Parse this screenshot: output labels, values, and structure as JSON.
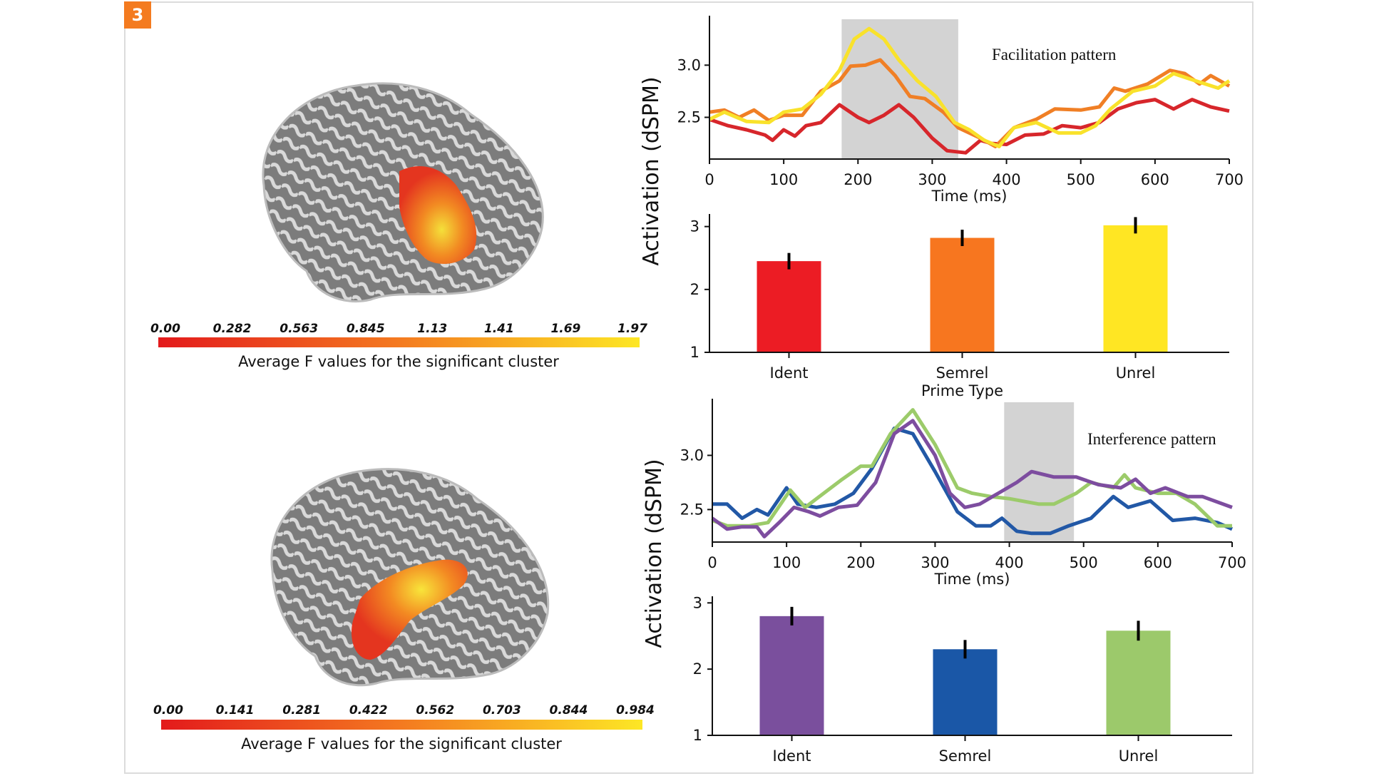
{
  "badge": "3",
  "colorbars": [
    {
      "ticks": [
        "0.00",
        "0.282",
        "0.563",
        "0.845",
        "1.13",
        "1.41",
        "1.69",
        "1.97"
      ],
      "caption": "Average F values for the significant cluster",
      "colors": [
        "#e31a1c",
        "#f47a20",
        "#fde725"
      ]
    },
    {
      "ticks": [
        "0.00",
        "0.141",
        "0.281",
        "0.422",
        "0.562",
        "0.703",
        "0.844",
        "0.984"
      ],
      "caption": "Average F values for the significant cluster",
      "colors": [
        "#e31a1c",
        "#f47a20",
        "#fde725"
      ]
    }
  ],
  "shared_ylabel": "Activation (dSPM)",
  "chart_data": [
    {
      "type": "line",
      "annotation": "Facilitation pattern",
      "xlabel": "Time (ms)",
      "xlim": [
        0,
        700
      ],
      "xticks": [
        "0",
        "100",
        "200",
        "300",
        "400",
        "500",
        "600",
        "700"
      ],
      "ylim": [
        2.1,
        3.44
      ],
      "yticks": [
        "2.5",
        "3.0"
      ],
      "shaded_interval": [
        178,
        335
      ],
      "shade_color": "#d3d3d3",
      "grid": false,
      "series": [
        {
          "color": "#d7262b",
          "x": [
            0,
            25,
            50,
            75,
            85,
            100,
            115,
            130,
            150,
            175,
            200,
            215,
            235,
            255,
            275,
            300,
            320,
            345,
            365,
            380,
            400,
            425,
            450,
            475,
            500,
            525,
            550,
            575,
            600,
            625,
            650,
            675,
            700
          ],
          "y": [
            2.48,
            2.42,
            2.38,
            2.33,
            2.28,
            2.38,
            2.32,
            2.42,
            2.45,
            2.62,
            2.5,
            2.45,
            2.52,
            2.62,
            2.5,
            2.3,
            2.18,
            2.16,
            2.28,
            2.25,
            2.24,
            2.33,
            2.34,
            2.42,
            2.4,
            2.45,
            2.58,
            2.64,
            2.67,
            2.58,
            2.67,
            2.6,
            2.56
          ]
        },
        {
          "color": "#f07f25",
          "x": [
            0,
            20,
            40,
            60,
            80,
            100,
            125,
            150,
            175,
            190,
            210,
            230,
            250,
            270,
            290,
            315,
            335,
            365,
            385,
            410,
            440,
            465,
            500,
            525,
            545,
            560,
            590,
            620,
            640,
            660,
            675,
            700
          ],
          "y": [
            2.55,
            2.57,
            2.5,
            2.57,
            2.47,
            2.52,
            2.52,
            2.75,
            2.85,
            2.99,
            3.0,
            3.05,
            2.9,
            2.7,
            2.68,
            2.55,
            2.4,
            2.3,
            2.22,
            2.4,
            2.48,
            2.58,
            2.57,
            2.6,
            2.78,
            2.75,
            2.82,
            2.95,
            2.92,
            2.82,
            2.9,
            2.8
          ]
        },
        {
          "color": "#f9e22b",
          "x": [
            0,
            20,
            50,
            80,
            100,
            125,
            150,
            175,
            195,
            215,
            235,
            255,
            280,
            305,
            330,
            350,
            370,
            390,
            410,
            440,
            470,
            500,
            520,
            540,
            570,
            600,
            625,
            650,
            685,
            700
          ],
          "y": [
            2.48,
            2.55,
            2.46,
            2.45,
            2.55,
            2.58,
            2.72,
            2.95,
            3.25,
            3.35,
            3.25,
            3.05,
            2.85,
            2.7,
            2.45,
            2.38,
            2.28,
            2.22,
            2.4,
            2.45,
            2.35,
            2.35,
            2.42,
            2.58,
            2.75,
            2.8,
            2.92,
            2.86,
            2.78,
            2.85
          ]
        }
      ]
    },
    {
      "type": "bar",
      "xlabel": "Prime Type",
      "categories": [
        "Ident",
        "Semrel",
        "Unrel"
      ],
      "values": [
        2.45,
        2.82,
        3.02
      ],
      "errors": [
        0.13,
        0.13,
        0.13
      ],
      "colors": [
        "#ec1c24",
        "#f7761f",
        "#ffe623"
      ],
      "ylim": [
        1,
        3.2
      ],
      "yticks": [
        "1",
        "2",
        "3"
      ]
    },
    {
      "type": "line",
      "annotation": "Interference pattern",
      "xlabel": "Time (ms)",
      "xlim": [
        0,
        700
      ],
      "xticks": [
        "0",
        "100",
        "200",
        "300",
        "400",
        "500",
        "600",
        "700"
      ],
      "ylim": [
        2.2,
        3.49
      ],
      "yticks": [
        "2.5",
        "3.0"
      ],
      "shaded_interval": [
        393,
        487
      ],
      "shade_color": "#d3d3d3",
      "grid": false,
      "series": [
        {
          "color": "#2258a6",
          "x": [
            0,
            20,
            40,
            60,
            75,
            100,
            115,
            140,
            165,
            190,
            215,
            245,
            270,
            300,
            330,
            355,
            375,
            390,
            410,
            430,
            455,
            480,
            510,
            540,
            560,
            590,
            620,
            650,
            680,
            700
          ],
          "y": [
            2.55,
            2.55,
            2.42,
            2.5,
            2.45,
            2.7,
            2.55,
            2.52,
            2.55,
            2.65,
            2.88,
            3.25,
            3.2,
            2.85,
            2.48,
            2.35,
            2.35,
            2.42,
            2.3,
            2.28,
            2.28,
            2.35,
            2.42,
            2.62,
            2.52,
            2.58,
            2.4,
            2.42,
            2.38,
            2.32
          ]
        },
        {
          "color": "#9ccb6a",
          "x": [
            0,
            20,
            50,
            75,
            105,
            125,
            150,
            175,
            200,
            215,
            240,
            270,
            300,
            330,
            350,
            375,
            400,
            440,
            460,
            490,
            510,
            540,
            555,
            570,
            600,
            625,
            650,
            680,
            700
          ],
          "y": [
            2.4,
            2.35,
            2.35,
            2.38,
            2.68,
            2.52,
            2.65,
            2.78,
            2.9,
            2.9,
            3.2,
            3.42,
            3.1,
            2.7,
            2.65,
            2.62,
            2.6,
            2.55,
            2.55,
            2.65,
            2.75,
            2.7,
            2.82,
            2.7,
            2.65,
            2.65,
            2.55,
            2.35,
            2.35
          ]
        },
        {
          "color": "#7d4d9f",
          "x": [
            0,
            20,
            40,
            60,
            70,
            90,
            110,
            130,
            145,
            170,
            195,
            220,
            245,
            270,
            300,
            320,
            340,
            360,
            385,
            410,
            430,
            460,
            490,
            520,
            550,
            570,
            590,
            610,
            640,
            660,
            700
          ],
          "y": [
            2.42,
            2.32,
            2.34,
            2.34,
            2.25,
            2.38,
            2.52,
            2.48,
            2.44,
            2.52,
            2.54,
            2.75,
            3.2,
            3.32,
            3.0,
            2.65,
            2.52,
            2.55,
            2.65,
            2.75,
            2.85,
            2.8,
            2.8,
            2.73,
            2.7,
            2.78,
            2.65,
            2.7,
            2.62,
            2.62,
            2.52
          ]
        }
      ]
    },
    {
      "type": "bar",
      "xlabel": "",
      "categories": [
        "Ident",
        "Semrel",
        "Unrel"
      ],
      "values": [
        2.8,
        2.3,
        2.58
      ],
      "errors": [
        0.14,
        0.14,
        0.15
      ],
      "colors": [
        "#7a4f9d",
        "#1a57a7",
        "#9cc96b"
      ],
      "ylim": [
        1,
        3.1
      ],
      "yticks": [
        "1",
        "2",
        "3"
      ]
    }
  ]
}
